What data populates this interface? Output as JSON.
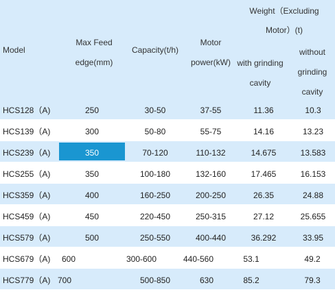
{
  "header": {
    "model": "Model",
    "feed_line1": "Max Feed",
    "feed_line2": "edge(mm)",
    "capacity": "Capacity(t/h)",
    "motor_line1": "Motor",
    "motor_line2": "power(kW)",
    "weight_line1": "Weight（Excluding",
    "weight_line2": "Motor）(t)",
    "with_line1": "with grinding",
    "with_line2": "cavity",
    "without_line1": "without",
    "without_line2": "grinding",
    "without_line3": "cavity"
  },
  "rows": [
    {
      "model": "HCS128（A)",
      "feed": "250",
      "capacity": "30-50",
      "motor": "37-55",
      "with": "11.36",
      "without": "10.3"
    },
    {
      "model": "HCS139（A)",
      "feed": "300",
      "capacity": "50-80",
      "motor": "55-75",
      "with": "14.16",
      "without": "13.23"
    },
    {
      "model": "HCS239（A)",
      "feed": "350",
      "capacity": "70-120",
      "motor": "110-132",
      "with": "14.675",
      "without": "13.583"
    },
    {
      "model": "HCS255（A)",
      "feed": "350",
      "capacity": "100-180",
      "motor": "132-160",
      "with": "17.465",
      "without": "16.153"
    },
    {
      "model": "HCS359（A)",
      "feed": "400",
      "capacity": "160-250",
      "motor": "200-250",
      "with": "26.35",
      "without": "24.88"
    },
    {
      "model": "HCS459（A)",
      "feed": "450",
      "capacity": "220-450",
      "motor": "250-315",
      "with": "27.12",
      "without": "25.655"
    },
    {
      "model": "HCS579（A)",
      "feed": "500",
      "capacity": "250-550",
      "motor": "400-440",
      "with": "36.292",
      "without": "33.95"
    },
    {
      "model": "HCS679（A)",
      "feed": "600",
      "capacity": "300-600",
      "motor": "440-560",
      "with": "53.1",
      "without": "49.2"
    },
    {
      "model": "HCS779（A)",
      "feed": "700",
      "capacity": "500-850",
      "motor": "630",
      "with": "85.2",
      "without": "79.3"
    }
  ],
  "colors": {
    "header_bg": "#d7ebfb",
    "stripe_bg": "#d7ebfb",
    "highlight_bg": "#1a96d1"
  }
}
